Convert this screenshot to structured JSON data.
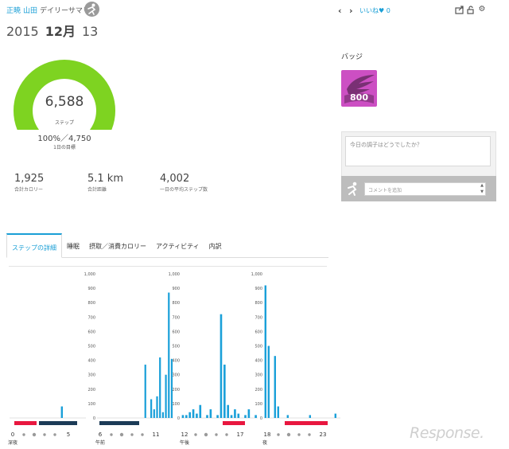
{
  "header": {
    "breadcrumb_link": "正暁",
    "user_name": "山田",
    "page_title": "デイリーサマリー",
    "date": {
      "year": "2015",
      "month": "12月",
      "day": "13"
    },
    "like_label": "いいね",
    "like_count": "0"
  },
  "summary": {
    "steps_value": "6,588",
    "steps_unit": "ステップ",
    "goal_percent_text": "100%／4,750",
    "goal_label": "1日の目標",
    "goal_progress": 1.0,
    "gauge_color": "#7ed321",
    "stats": [
      {
        "value": "1,925",
        "label": "合計カロリー"
      },
      {
        "value": "5.1 km",
        "label": "合計距離"
      },
      {
        "value": "4,002",
        "label": "一日の平均ステップ数"
      }
    ]
  },
  "badge": {
    "title": "バッジ",
    "value": "800",
    "color": "#cc4fc3"
  },
  "comments": {
    "prompt_placeholder": "今日の調子はどうでしたか？",
    "add_placeholder": "コメントを追加"
  },
  "tabs": [
    {
      "label": "ステップの詳細",
      "active": true
    },
    {
      "label": "睡眠",
      "active": false
    },
    {
      "label": "摂取／消費カロリー",
      "active": false
    },
    {
      "label": "アクティビティ",
      "active": false
    },
    {
      "label": "内訳",
      "active": false
    }
  ],
  "chart_data": {
    "type": "bar",
    "ylim": [
      0,
      1000
    ],
    "yticks": [
      "1,000",
      "900",
      "800",
      "700",
      "600",
      "500",
      "400",
      "300",
      "200",
      "100",
      "0"
    ],
    "bar_color": "#1aa0d9",
    "sleep_color": "#e8173f",
    "awake_color": "#1c3b57",
    "panels": [
      {
        "start_label": "0",
        "end_label": "5",
        "period": "深夜",
        "values": [
          0,
          0,
          0,
          0,
          0,
          0,
          0,
          0,
          0,
          0,
          0,
          0,
          0,
          0,
          0,
          0,
          80,
          0,
          0,
          0,
          0,
          0,
          0,
          0
        ]
      },
      {
        "start_label": "6",
        "end_label": "11",
        "period": "午前",
        "values": [
          0,
          0,
          0,
          0,
          0,
          0,
          0,
          0,
          0,
          0,
          0,
          0,
          0,
          0,
          0,
          0,
          370,
          0,
          130,
          60,
          150,
          420,
          40,
          300,
          870,
          410
        ]
      },
      {
        "start_label": "12",
        "end_label": "17",
        "period": "午後",
        "values": [
          20,
          20,
          40,
          60,
          30,
          90,
          0,
          20,
          60,
          0,
          20,
          720,
          370,
          90,
          20,
          60,
          30,
          0,
          20,
          60,
          0,
          20
        ]
      },
      {
        "start_label": "18",
        "end_label": "23",
        "period": "夜",
        "values": [
          920,
          500,
          0,
          430,
          80,
          0,
          0,
          20,
          0,
          0,
          0,
          0,
          0,
          0,
          20,
          0,
          0,
          0,
          0,
          0,
          0,
          0,
          30,
          0
        ]
      }
    ]
  },
  "watermark": "Response."
}
